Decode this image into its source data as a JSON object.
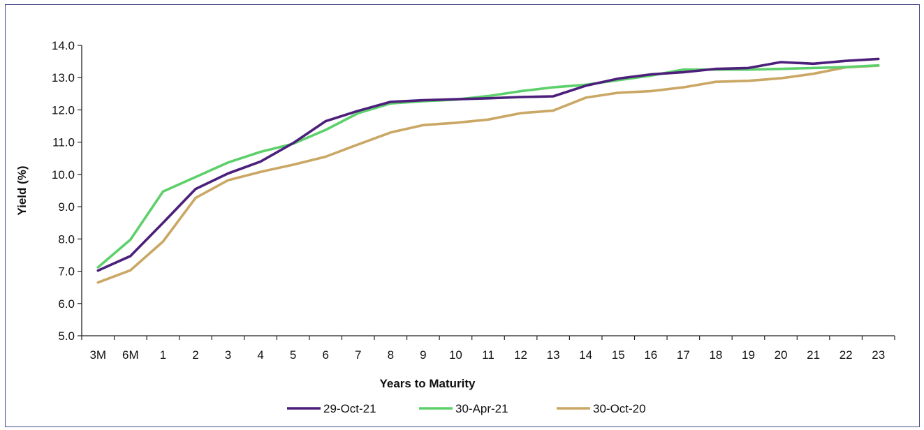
{
  "chart_data": {
    "type": "line",
    "title": "",
    "xlabel": "Years to Maturity",
    "ylabel": "Yield (%)",
    "ylim": [
      5.0,
      14.0
    ],
    "y_ticks": [
      "5.0",
      "6.0",
      "7.0",
      "8.0",
      "9.0",
      "10.0",
      "11.0",
      "12.0",
      "13.0",
      "14.0"
    ],
    "categories": [
      "3M",
      "6M",
      "1",
      "2",
      "3",
      "4",
      "5",
      "6",
      "7",
      "8",
      "9",
      "10",
      "11",
      "12",
      "13",
      "14",
      "15",
      "16",
      "17",
      "18",
      "19",
      "20",
      "21",
      "22",
      "23"
    ],
    "grid": false,
    "legend_position": "bottom",
    "series": [
      {
        "name": "29-Oct-21",
        "color": "#4b1f7a",
        "values": [
          7.02,
          7.47,
          8.5,
          9.55,
          10.03,
          10.4,
          10.97,
          11.65,
          11.97,
          12.25,
          12.3,
          12.33,
          12.36,
          12.4,
          12.42,
          12.75,
          12.97,
          13.1,
          13.17,
          13.27,
          13.3,
          13.48,
          13.43,
          13.52,
          13.58
        ]
      },
      {
        "name": "30-Apr-21",
        "color": "#5dd06c",
        "values": [
          7.12,
          7.98,
          9.47,
          9.92,
          10.37,
          10.7,
          10.95,
          11.38,
          11.9,
          12.2,
          12.27,
          12.32,
          12.43,
          12.58,
          12.7,
          12.78,
          12.92,
          13.06,
          13.25,
          13.25,
          13.25,
          13.27,
          13.3,
          13.33,
          13.38
        ]
      },
      {
        "name": "30-Oct-20",
        "color": "#caa764",
        "values": [
          6.65,
          7.03,
          7.92,
          9.27,
          9.82,
          10.08,
          10.3,
          10.55,
          10.93,
          11.3,
          11.53,
          11.6,
          11.7,
          11.9,
          11.98,
          12.38,
          12.53,
          12.58,
          12.7,
          12.87,
          12.9,
          12.98,
          13.12,
          13.32,
          13.37
        ]
      }
    ]
  }
}
